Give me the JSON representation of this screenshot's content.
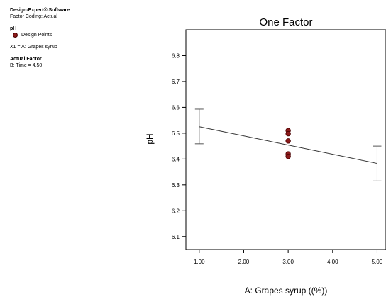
{
  "software": {
    "name": "Design-Expert® Software",
    "coding": "Factor Coding: Actual"
  },
  "response": {
    "name": "pH",
    "legend_label": "Design Points"
  },
  "factor_x": "X1 = A: Grapes syrup",
  "actual_factor": {
    "heading": "Actual Factor",
    "value": "B: Time = 4.50"
  },
  "colors": {
    "points": "#8b1a1a",
    "point_border": "#4a0000",
    "line": "#333333"
  },
  "chart_data": {
    "type": "line",
    "title": "One Factor",
    "xlabel": "A: Grapes syrup ((%))",
    "ylabel": "pH",
    "xlim": [
      0.7,
      5.2
    ],
    "ylim": [
      6.05,
      6.9
    ],
    "xticks": [
      1.0,
      2.0,
      3.0,
      4.0,
      5.0
    ],
    "xtick_labels": [
      "1.00",
      "2.00",
      "3.00",
      "4.00",
      "5.00"
    ],
    "yticks": [
      6.1,
      6.2,
      6.3,
      6.4,
      6.5,
      6.6,
      6.7,
      6.8
    ],
    "ytick_labels": [
      "6.1",
      "6.2",
      "6.3",
      "6.4",
      "6.5",
      "6.6",
      "6.7",
      "6.8"
    ],
    "prediction_line": {
      "x": [
        1.0,
        5.0
      ],
      "y": [
        6.525,
        6.383
      ]
    },
    "error_bars": [
      {
        "x": 1.0,
        "low": 6.459,
        "high": 6.593
      },
      {
        "x": 5.0,
        "low": 6.315,
        "high": 6.45
      }
    ],
    "design_points": [
      {
        "x": 3.0,
        "y": 6.51
      },
      {
        "x": 3.0,
        "y": 6.498
      },
      {
        "x": 3.0,
        "y": 6.47
      },
      {
        "x": 3.0,
        "y": 6.42
      },
      {
        "x": 3.0,
        "y": 6.41
      }
    ],
    "grid": false,
    "legend": "top-left, outside plot"
  }
}
